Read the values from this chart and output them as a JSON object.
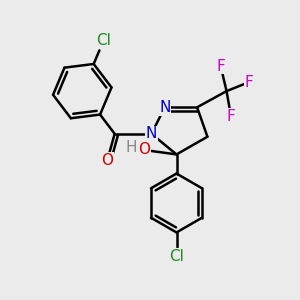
{
  "bg_color": "#ebebeb",
  "bond_color": "#000000",
  "bond_width": 1.8,
  "atom_colors": {
    "N": "#0000cc",
    "O": "#cc0000",
    "F": "#cc00cc",
    "Cl": "#228B22",
    "H": "#888888"
  },
  "font_size": 11
}
